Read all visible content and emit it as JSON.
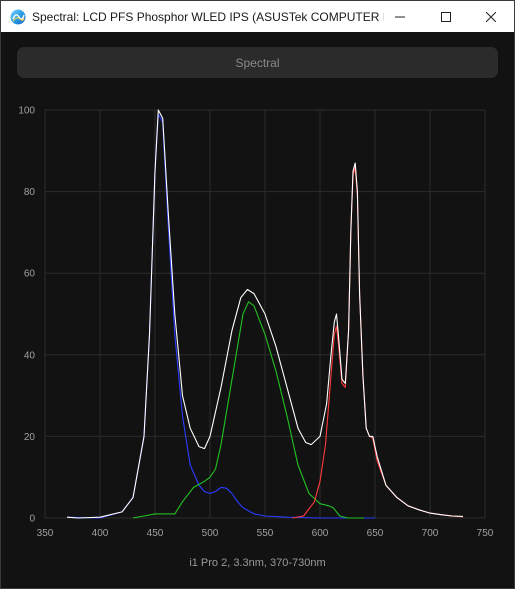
{
  "window": {
    "title": "Spectral: LCD PFS Phosphor WLED IPS (ASUSTek COMPUTER IN...",
    "icon": "spectral-app-icon"
  },
  "toolbar": {
    "spectral_label": "Spectral"
  },
  "caption": "i1 Pro 2, 3.3nm, 370-730nm",
  "colors": {
    "white": "#ffffff",
    "blue": "#2b3cff",
    "green": "#21c321",
    "red": "#ff3b3b",
    "grid": "#2c2c2c"
  },
  "chart_data": {
    "type": "line",
    "xlim": [
      350,
      750
    ],
    "ylim": [
      0,
      100
    ],
    "x_ticks": [
      350,
      400,
      450,
      500,
      550,
      600,
      650,
      700,
      750
    ],
    "y_ticks": [
      0,
      20,
      40,
      60,
      80,
      100
    ],
    "grid": true,
    "series": [
      {
        "color": "#ffffff",
        "points": [
          [
            370,
            0.2
          ],
          [
            380,
            0
          ],
          [
            400,
            0.2
          ],
          [
            420,
            1.5
          ],
          [
            430,
            5
          ],
          [
            440,
            20
          ],
          [
            445,
            45
          ],
          [
            450,
            85
          ],
          [
            453,
            100
          ],
          [
            457,
            98
          ],
          [
            462,
            75
          ],
          [
            468,
            50
          ],
          [
            475,
            30
          ],
          [
            482,
            22
          ],
          [
            490,
            17.5
          ],
          [
            495,
            17
          ],
          [
            500,
            20
          ],
          [
            510,
            32
          ],
          [
            520,
            46
          ],
          [
            528,
            54
          ],
          [
            534,
            56
          ],
          [
            540,
            55
          ],
          [
            550,
            50
          ],
          [
            560,
            42
          ],
          [
            570,
            32
          ],
          [
            580,
            22
          ],
          [
            587,
            18.5
          ],
          [
            592,
            18
          ],
          [
            600,
            20
          ],
          [
            606,
            28
          ],
          [
            610,
            40
          ],
          [
            613,
            48
          ],
          [
            615,
            50
          ],
          [
            617,
            44
          ],
          [
            620,
            34
          ],
          [
            623,
            33
          ],
          [
            626,
            46
          ],
          [
            628,
            70
          ],
          [
            630,
            85
          ],
          [
            632,
            87
          ],
          [
            634,
            80
          ],
          [
            636,
            55
          ],
          [
            639,
            35
          ],
          [
            642,
            22
          ],
          [
            645,
            20
          ],
          [
            648,
            20
          ],
          [
            652,
            15
          ],
          [
            660,
            8
          ],
          [
            670,
            5
          ],
          [
            680,
            3
          ],
          [
            690,
            2
          ],
          [
            700,
            1.2
          ],
          [
            710,
            0.8
          ],
          [
            720,
            0.5
          ],
          [
            730,
            0.4
          ]
        ]
      },
      {
        "color": "#2b3cff",
        "points": [
          [
            370,
            0.2
          ],
          [
            400,
            0
          ],
          [
            420,
            1.5
          ],
          [
            430,
            5
          ],
          [
            440,
            20
          ],
          [
            445,
            45
          ],
          [
            450,
            85
          ],
          [
            453,
            99
          ],
          [
            457,
            97
          ],
          [
            462,
            72
          ],
          [
            468,
            45
          ],
          [
            475,
            25
          ],
          [
            482,
            13
          ],
          [
            490,
            8
          ],
          [
            495,
            6.5
          ],
          [
            500,
            6
          ],
          [
            505,
            6.5
          ],
          [
            510,
            7.5
          ],
          [
            515,
            7.3
          ],
          [
            520,
            6
          ],
          [
            525,
            4
          ],
          [
            530,
            2.5
          ],
          [
            540,
            1
          ],
          [
            550,
            0.5
          ],
          [
            570,
            0.2
          ],
          [
            600,
            0
          ],
          [
            650,
            0
          ]
        ]
      },
      {
        "color": "#21c321",
        "points": [
          [
            430,
            0
          ],
          [
            440,
            0.5
          ],
          [
            450,
            1
          ],
          [
            460,
            1
          ],
          [
            468,
            1
          ],
          [
            475,
            4
          ],
          [
            485,
            7.5
          ],
          [
            495,
            9
          ],
          [
            500,
            10
          ],
          [
            505,
            12
          ],
          [
            510,
            18
          ],
          [
            520,
            34
          ],
          [
            530,
            50
          ],
          [
            535,
            53
          ],
          [
            540,
            52
          ],
          [
            550,
            45
          ],
          [
            560,
            36
          ],
          [
            570,
            25
          ],
          [
            580,
            13
          ],
          [
            590,
            6
          ],
          [
            600,
            3.5
          ],
          [
            608,
            3
          ],
          [
            612,
            2.5
          ],
          [
            618,
            0.5
          ],
          [
            625,
            0
          ],
          [
            640,
            0
          ]
        ]
      },
      {
        "color": "#ff3b3b",
        "points": [
          [
            575,
            0
          ],
          [
            585,
            0.5
          ],
          [
            595,
            4
          ],
          [
            600,
            9
          ],
          [
            605,
            18
          ],
          [
            610,
            35
          ],
          [
            613,
            45
          ],
          [
            615,
            47
          ],
          [
            617,
            42
          ],
          [
            620,
            33
          ],
          [
            623,
            32
          ],
          [
            626,
            46
          ],
          [
            628,
            70
          ],
          [
            630,
            84
          ],
          [
            632,
            86
          ],
          [
            634,
            79
          ],
          [
            636,
            55
          ],
          [
            639,
            35
          ],
          [
            642,
            22
          ],
          [
            645,
            20
          ],
          [
            648,
            19.5
          ],
          [
            652,
            14
          ],
          [
            660,
            8
          ],
          [
            670,
            5
          ],
          [
            680,
            3
          ],
          [
            690,
            2
          ],
          [
            700,
            1.2
          ],
          [
            710,
            0.8
          ],
          [
            720,
            0.5
          ],
          [
            730,
            0.3
          ]
        ]
      }
    ]
  }
}
